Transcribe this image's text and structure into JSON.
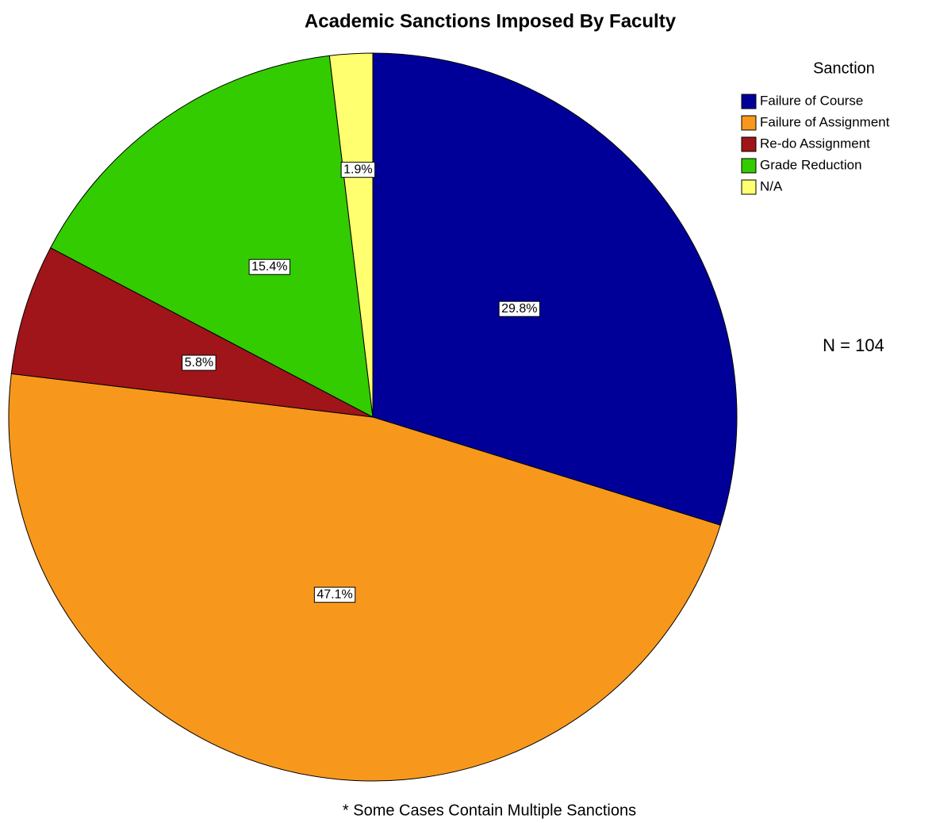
{
  "chart_data": {
    "type": "pie",
    "title": "Academic Sanctions Imposed By Faculty",
    "categories": [
      "Failure of Course",
      "Failure of Assignment",
      "Re-do Assignment",
      "Grade Reduction",
      "N/A"
    ],
    "values": [
      29.8,
      47.1,
      5.8,
      15.4,
      1.9
    ],
    "value_labels": [
      "29.8%",
      "47.1%",
      "5.8%",
      "15.4%",
      "1.9%"
    ],
    "colors": [
      "#000099",
      "#f7981d",
      "#a0151a",
      "#33cc00",
      "#ffff70"
    ],
    "legend_title": "Sanction",
    "legend": "top-right",
    "annotations": [
      "N = 104",
      "* Some Cases Contain Multiple Sanctions"
    ]
  }
}
